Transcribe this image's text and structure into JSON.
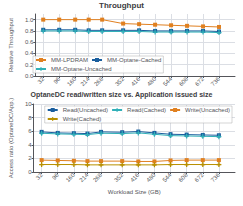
{
  "chart_data": [
    {
      "type": "line",
      "title": "Throughput",
      "ylabel": "Relative Throughput",
      "x": [
        32,
        96,
        160,
        214,
        268,
        352,
        416,
        480,
        544,
        608,
        672,
        736
      ],
      "xlim": [
        0,
        800
      ],
      "xticks": [
        32,
        96,
        160,
        214,
        268,
        352,
        416,
        480,
        544,
        608,
        672,
        736
      ],
      "ylim": [
        0.0,
        1.1
      ],
      "yticks": [
        {
          "value": 0,
          "label": "0.0"
        },
        0.2,
        0.4,
        0.6,
        0.8,
        {
          "value": 1,
          "label": "1.0"
        }
      ],
      "grid": true,
      "legend": "lower left",
      "series": [
        {
          "name": "MM-LPDRAM",
          "color": "#e08020",
          "marker": "square",
          "values": [
            1.0,
            1.0,
            1.0,
            1.0,
            1.0,
            0.93,
            0.92,
            0.91,
            0.9,
            0.89,
            0.88,
            0.87
          ],
          "errors": [
            0.005,
            0.005,
            0.005,
            0.005,
            0.005,
            0.01,
            0.01,
            0.01,
            0.01,
            0.01,
            0.01,
            0.01
          ]
        },
        {
          "name": "MM-Optane-Cached",
          "color": "#1a5e9e",
          "marker": "square",
          "values": [
            0.82,
            0.82,
            0.82,
            0.81,
            0.81,
            0.81,
            0.81,
            0.8,
            0.8,
            0.8,
            0.8,
            0.79
          ],
          "errors": [
            0.005,
            0.005,
            0.005,
            0.005,
            0.005,
            0.005,
            0.005,
            0.005,
            0.02,
            0.01,
            0.01,
            0.01
          ]
        },
        {
          "name": "MM-Optane-Uncached",
          "color": "#30b0b8",
          "marker": "plus",
          "values": [
            0.8,
            0.8,
            0.8,
            0.79,
            0.79,
            0.79,
            0.79,
            0.78,
            0.78,
            0.78,
            0.78,
            0.77
          ],
          "errors": [
            0.005,
            0.005,
            0.005,
            0.005,
            0.005,
            0.005,
            0.005,
            0.005,
            0.02,
            0.01,
            0.01,
            0.01
          ]
        }
      ]
    },
    {
      "type": "line",
      "title": "OptaneDC read/written size vs. Application issued size",
      "ylabel": "Access ratio (OptaneDC/App.)",
      "xlabel": "Workload Size (GB)",
      "x": [
        32,
        96,
        160,
        214,
        268,
        352,
        416,
        480,
        544,
        608,
        672,
        736
      ],
      "xlim": [
        0,
        800
      ],
      "xticks": [
        32,
        96,
        160,
        214,
        268,
        352,
        416,
        480,
        544,
        608,
        672,
        736
      ],
      "ylim": [
        0,
        10
      ],
      "yticks": [
        0,
        2,
        4,
        6,
        8,
        10
      ],
      "grid": true,
      "legend": "upper right",
      "series": [
        {
          "name": "Read(Uncached)",
          "color": "#1a5e9e",
          "marker": "square",
          "values": [
            5.9,
            5.75,
            5.7,
            5.65,
            5.9,
            5.85,
            5.95,
            5.75,
            5.55,
            5.5,
            5.45,
            5.4
          ],
          "errors": [
            0.12,
            0.1,
            0.1,
            0.1,
            0.1,
            0.1,
            0.1,
            0.1,
            0.18,
            0.12,
            0.12,
            0.12
          ]
        },
        {
          "name": "Read(Cached)",
          "color": "#30b0b8",
          "marker": "plus",
          "values": [
            5.7,
            5.6,
            5.55,
            5.5,
            5.7,
            5.65,
            5.75,
            5.55,
            5.35,
            5.3,
            5.25,
            5.2
          ],
          "errors": [
            0.12,
            0.1,
            0.1,
            0.1,
            0.1,
            0.1,
            0.1,
            0.1,
            0.18,
            0.12,
            0.12,
            0.12
          ]
        },
        {
          "name": "Write(Uncached)",
          "color": "#e08020",
          "marker": "square",
          "values": [
            1.75,
            1.7,
            1.65,
            1.6,
            1.6,
            1.6,
            1.55,
            1.55,
            1.7,
            1.75,
            1.75,
            1.75
          ],
          "errors": [
            0.05,
            0.05,
            0.05,
            0.05,
            0.05,
            0.05,
            0.05,
            0.05,
            0.1,
            0.08,
            0.08,
            0.08
          ]
        },
        {
          "name": "Write(Cached)",
          "color": "#b89000",
          "marker": "plus",
          "values": [
            1.1,
            1.1,
            1.1,
            1.05,
            1.05,
            1.05,
            1.05,
            1.05,
            1.1,
            1.1,
            1.1,
            1.1
          ],
          "errors": [
            0.03,
            0.03,
            0.03,
            0.03,
            0.03,
            0.03,
            0.03,
            0.03,
            0.06,
            0.05,
            0.05,
            0.05
          ]
        }
      ]
    }
  ]
}
